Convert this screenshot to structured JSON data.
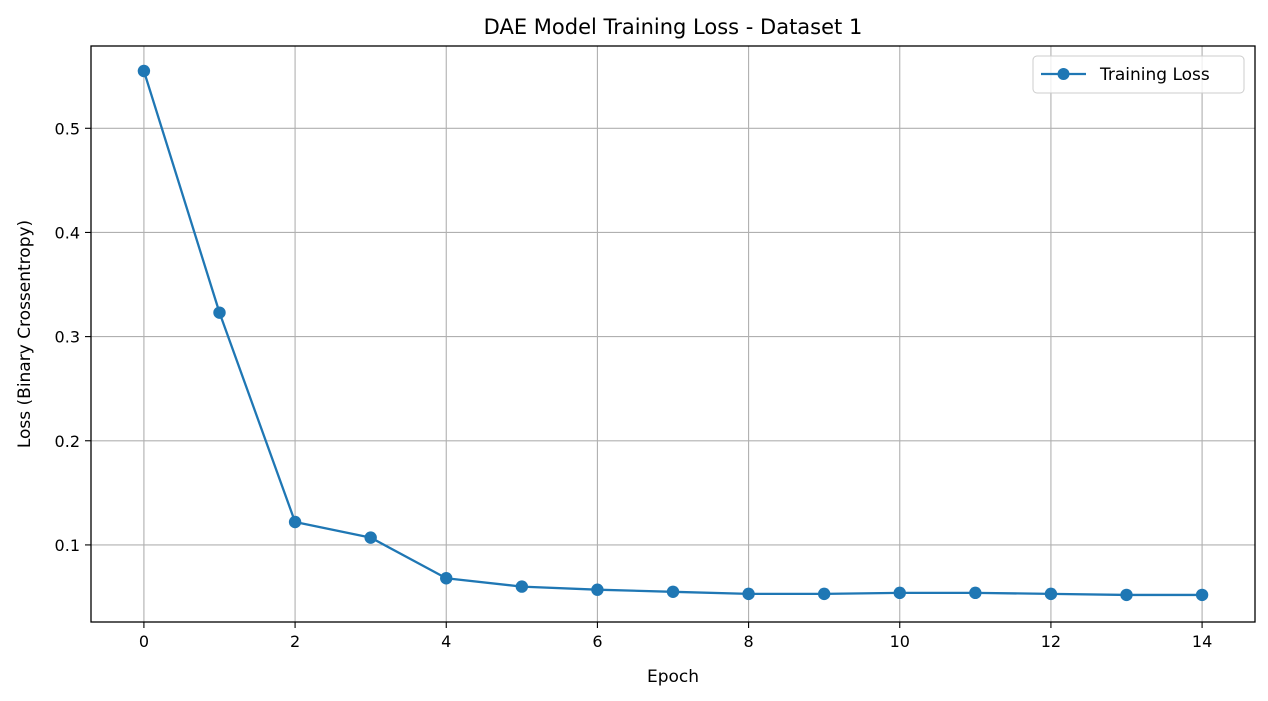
{
  "chart_data": {
    "type": "line",
    "title": "DAE Model Training Loss - Dataset 1",
    "xlabel": "Epoch",
    "ylabel": "Loss (Binary Crossentropy)",
    "x": [
      0,
      1,
      2,
      3,
      4,
      5,
      6,
      7,
      8,
      9,
      10,
      11,
      12,
      13,
      14
    ],
    "series": [
      {
        "name": "Training Loss",
        "color": "#1f77b4",
        "marker": "circle",
        "values": [
          0.555,
          0.323,
          0.122,
          0.107,
          0.068,
          0.06,
          0.057,
          0.055,
          0.053,
          0.053,
          0.054,
          0.054,
          0.053,
          0.052,
          0.052
        ]
      }
    ],
    "xlim": [
      -0.7,
      14.7
    ],
    "ylim": [
      0.026,
      0.579
    ],
    "xticks": [
      "0",
      "2",
      "4",
      "6",
      "8",
      "10",
      "12",
      "14"
    ],
    "yticks": [
      "0.1",
      "0.2",
      "0.3",
      "0.4",
      "0.5"
    ],
    "grid": true,
    "legend_position": "top-right"
  }
}
